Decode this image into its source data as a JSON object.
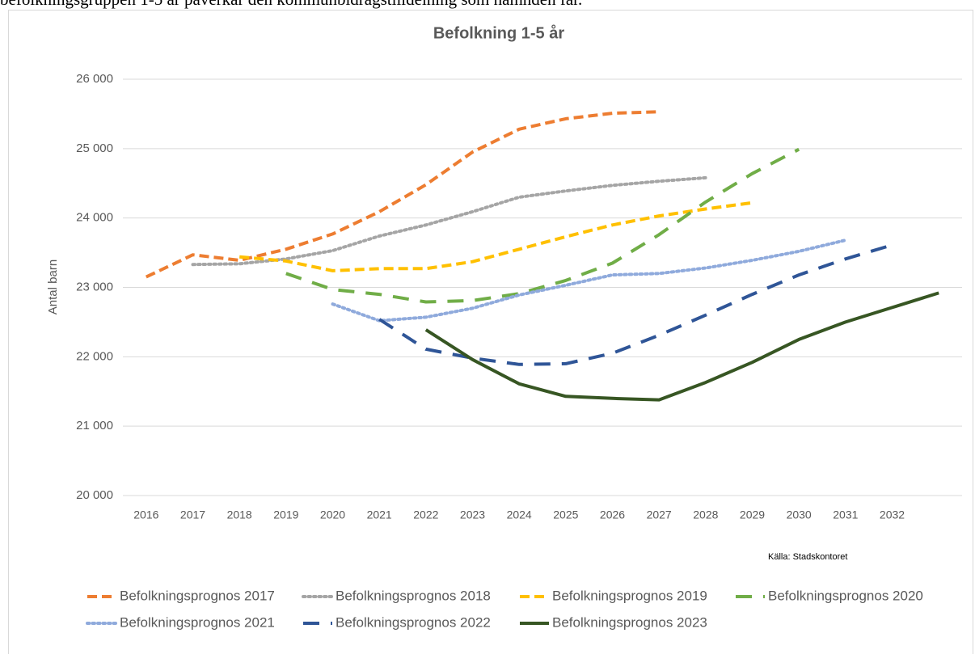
{
  "page_text": "befolkningsgruppen 1-5 år påverkar den kommunbidragstilldelning som nämnden får.",
  "chart_data": {
    "type": "line",
    "title": "Befolkning 1-5 år",
    "y_label": "Antal barn",
    "source": "Källa: Stadskontoret",
    "categories": [
      "2016",
      "2017",
      "2018",
      "2019",
      "2020",
      "2021",
      "2022",
      "2023",
      "2024",
      "2025",
      "2026",
      "2027",
      "2028",
      "2029",
      "2030",
      "2031",
      "2032",
      null
    ],
    "ylim": [
      20000,
      26000
    ],
    "yticks": [
      {
        "value": 20000,
        "label": "20 000"
      },
      {
        "value": 21000,
        "label": "21 000"
      },
      {
        "value": 22000,
        "label": "22 000"
      },
      {
        "value": 23000,
        "label": "23 000"
      },
      {
        "value": 24000,
        "label": "24 000"
      },
      {
        "value": 25000,
        "label": "25 000"
      },
      {
        "value": 26000,
        "label": "26 000"
      }
    ],
    "grid": true,
    "legend": "bottom",
    "series": [
      {
        "name": "Befolkningsprognos 2017",
        "color": "#ed7d31",
        "style": "dashed",
        "values": [
          23150,
          23470,
          23390,
          23550,
          23770,
          24090,
          24480,
          24950,
          25280,
          25430,
          25510,
          25530,
          null,
          null,
          null,
          null,
          null,
          null
        ]
      },
      {
        "name": "Befolkningsprognos 2018",
        "color": "#a5a5a5",
        "style": "dotted",
        "values": [
          null,
          23330,
          23340,
          23410,
          23530,
          23740,
          23900,
          24090,
          24300,
          24390,
          24470,
          24530,
          24580,
          null,
          null,
          null,
          null,
          null
        ]
      },
      {
        "name": "Befolkningsprognos 2019",
        "color": "#ffc000",
        "style": "dashed",
        "values": [
          null,
          null,
          23440,
          23380,
          23240,
          23270,
          23270,
          23370,
          23550,
          23730,
          23900,
          24030,
          24130,
          24220,
          null,
          null,
          null,
          null
        ]
      },
      {
        "name": "Befolkningsprognos 2020",
        "color": "#70ad47",
        "style": "longdash",
        "values": [
          null,
          null,
          null,
          23200,
          22970,
          22900,
          22790,
          22810,
          22910,
          23100,
          23350,
          23760,
          24230,
          24640,
          24990,
          null,
          null,
          null
        ]
      },
      {
        "name": "Befolkningsprognos 2021",
        "color": "#8faadc",
        "style": "dotted",
        "values": [
          null,
          null,
          null,
          null,
          22760,
          22520,
          22570,
          22700,
          22890,
          23030,
          23180,
          23200,
          23280,
          23390,
          23520,
          23680,
          null,
          null
        ]
      },
      {
        "name": "Befolkningsprognos 2022",
        "color": "#2f5597",
        "style": "longdash",
        "values": [
          null,
          null,
          null,
          null,
          null,
          22540,
          22110,
          21980,
          21890,
          21900,
          22050,
          22310,
          22600,
          22900,
          23180,
          23410,
          23610,
          null
        ]
      },
      {
        "name": "Befolkningsprognos 2023",
        "color": "#375623",
        "style": "solid",
        "values": [
          null,
          null,
          null,
          null,
          null,
          null,
          22390,
          21960,
          21610,
          21430,
          21400,
          21380,
          21630,
          21920,
          22250,
          22500,
          22710,
          22920
        ]
      }
    ]
  }
}
